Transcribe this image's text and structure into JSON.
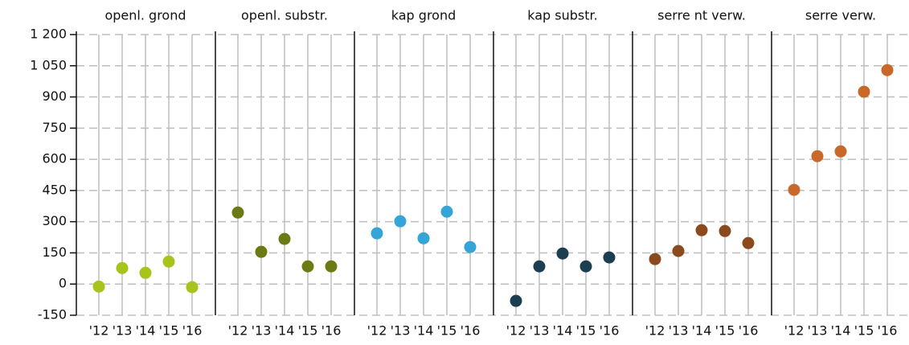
{
  "chart_data": {
    "type": "scatter",
    "categories": [
      "'12",
      "'13",
      "'14",
      "'15",
      "'16"
    ],
    "series": [
      {
        "name": "openl. grond",
        "color": "#a6c41c",
        "values": [
          -12,
          77,
          54,
          108,
          -15
        ]
      },
      {
        "name": "openl. substr.",
        "color": "#6b7a12",
        "values": [
          344,
          155,
          217,
          85,
          85
        ]
      },
      {
        "name": "kap grond",
        "color": "#35a4d6",
        "values": [
          244,
          302,
          220,
          348,
          178
        ]
      },
      {
        "name": "kap substr.",
        "color": "#1b3f50",
        "values": [
          -81,
          85,
          147,
          85,
          128
        ]
      },
      {
        "name": "serre nt verw.",
        "color": "#8b4a1e",
        "values": [
          120,
          159,
          259,
          255,
          197
        ]
      },
      {
        "name": "serre verw.",
        "color": "#c8692a",
        "values": [
          453,
          615,
          638,
          925,
          1029
        ]
      }
    ],
    "ylim": [
      -150,
      1200
    ],
    "yticks": [
      -150,
      0,
      150,
      300,
      450,
      600,
      750,
      900,
      {
        "value": 1050,
        "label": "1 050"
      },
      {
        "value": 1200,
        "label": "1 200"
      }
    ],
    "grid": true
  }
}
